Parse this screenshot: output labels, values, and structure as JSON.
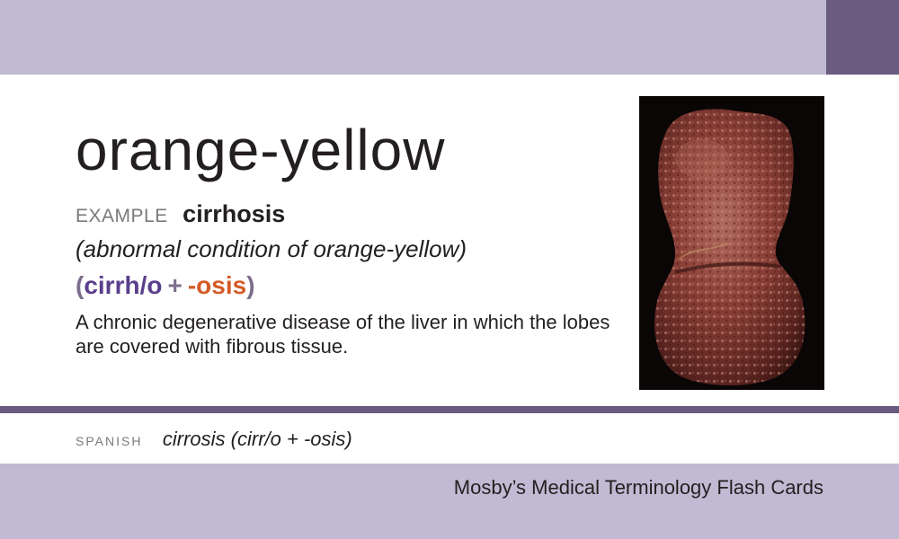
{
  "card": {
    "term": "orange-yellow",
    "example_label": "EXAMPLE",
    "example_word": "cirrhosis",
    "meaning": "(abnormal condition of orange-yellow)",
    "parts": {
      "open_paren": "(",
      "root": "cirrh/o",
      "plus": "+",
      "suffix": "-osis",
      "close_paren": ")"
    },
    "definition": "A chronic degenerative disease of the liver in which the lobes are covered with fibrous tissue.",
    "spanish_label": "SPANISH",
    "spanish_word": "cirrosis (cirr/o + -osis)",
    "footer_title": "Mosby’s Medical Terminology Flash Cards"
  },
  "colors": {
    "band": "#c2b9d3",
    "accent": "#6b5b80",
    "root": "#5b3f8d",
    "suffix": "#d45b27"
  },
  "image": {
    "icon": "cirrhotic-liver-photo"
  }
}
